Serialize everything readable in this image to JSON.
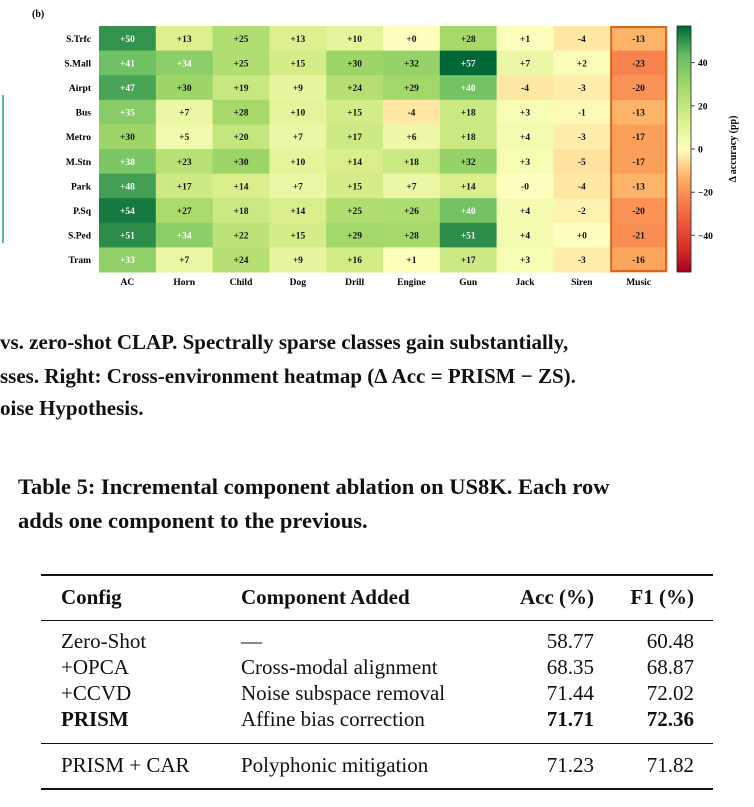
{
  "figure": {
    "panel_label": "(b)",
    "caption_lines": [
      "vs. zero-shot CLAP. Spectrally sparse classes gain substantially,",
      "sses. Right: Cross-environment heatmap (Δ Acc = PRISM − ZS).",
      "oise Hypothesis."
    ]
  },
  "chart_data": {
    "type": "heatmap",
    "rows": [
      "S.Trfc",
      "S.Mall",
      "Airpt",
      "Bus",
      "Metro",
      "M.Stn",
      "Park",
      "P.Sq",
      "S.Ped",
      "Tram"
    ],
    "columns": [
      "AC",
      "Horn",
      "Child",
      "Dog",
      "Drill",
      "Engine",
      "Gun",
      "Jack",
      "Siren",
      "Music"
    ],
    "cell_labels": [
      [
        "+50",
        "+13",
        "+25",
        "+13",
        "+10",
        "+0",
        "+28",
        "+1",
        "-4",
        "-13"
      ],
      [
        "+41",
        "+34",
        "+25",
        "+15",
        "+30",
        "+32",
        "+57",
        "+7",
        "+2",
        "-23"
      ],
      [
        "+47",
        "+30",
        "+19",
        "+9",
        "+24",
        "+29",
        "+40",
        "-4",
        "-3",
        "-20"
      ],
      [
        "+35",
        "+7",
        "+28",
        "+10",
        "+15",
        "-4",
        "+18",
        "+3",
        "-1",
        "-13"
      ],
      [
        "+30",
        "+5",
        "+20",
        "+7",
        "+17",
        "+6",
        "+18",
        "+4",
        "-3",
        "-17"
      ],
      [
        "+38",
        "+23",
        "+30",
        "+10",
        "+14",
        "+18",
        "+32",
        "+3",
        "-5",
        "-17"
      ],
      [
        "+48",
        "+17",
        "+14",
        "+7",
        "+15",
        "+7",
        "+14",
        "-0",
        "-4",
        "-13"
      ],
      [
        "+54",
        "+27",
        "+18",
        "+14",
        "+25",
        "+26",
        "+40",
        "+4",
        "-2",
        "-20"
      ],
      [
        "+51",
        "+34",
        "+22",
        "+15",
        "+29",
        "+28",
        "+51",
        "+4",
        "+0",
        "-21"
      ],
      [
        "+33",
        "+7",
        "+24",
        "+9",
        "+16",
        "+1",
        "+17",
        "+3",
        "-3",
        "-16"
      ]
    ],
    "colorbar": {
      "label": "Δ accuracy (pp)",
      "ticks": [
        "40",
        "20",
        "0",
        "−20",
        "−40"
      ],
      "tick_values": [
        40,
        20,
        0,
        -20,
        -40
      ],
      "range": [
        -57,
        57
      ]
    },
    "highlighted_column": "Music",
    "colors": {
      "neg_end": "#a50026",
      "mid": "#ffffbf",
      "pos_end": "#006837",
      "highlight": "#d9661f"
    }
  },
  "table": {
    "caption_lines": [
      "Table 5: Incremental component ablation on US8K. Each row",
      "adds one component to the previous."
    ],
    "headers": {
      "config": "Config",
      "component": "Component Added",
      "acc": "Acc (%)",
      "f1": "F1 (%)"
    },
    "rows": [
      {
        "config": "Zero-Shot",
        "component": "—",
        "acc": "58.77",
        "f1": "60.48"
      },
      {
        "config": "+OPCA",
        "component": "Cross-modal alignment",
        "acc": "68.35",
        "f1": "68.87"
      },
      {
        "config": "+CCVD",
        "component": "Noise subspace removal",
        "acc": "71.44",
        "f1": "72.02"
      },
      {
        "config": "PRISM",
        "component": "Affine bias correction",
        "acc": "71.71",
        "f1": "72.36"
      },
      {
        "config": "PRISM + CAR",
        "component": "Polyphonic mitigation",
        "acc": "71.23",
        "f1": "71.82"
      }
    ]
  }
}
